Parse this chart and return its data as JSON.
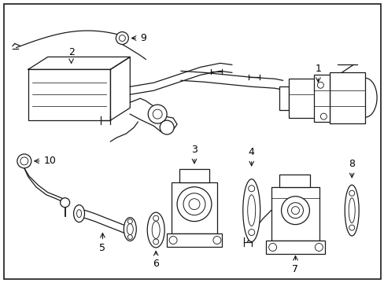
{
  "figsize": [
    4.89,
    3.6
  ],
  "dpi": 100,
  "bg": "#ffffff",
  "lc": "#1a1a1a",
  "lw": 0.9
}
